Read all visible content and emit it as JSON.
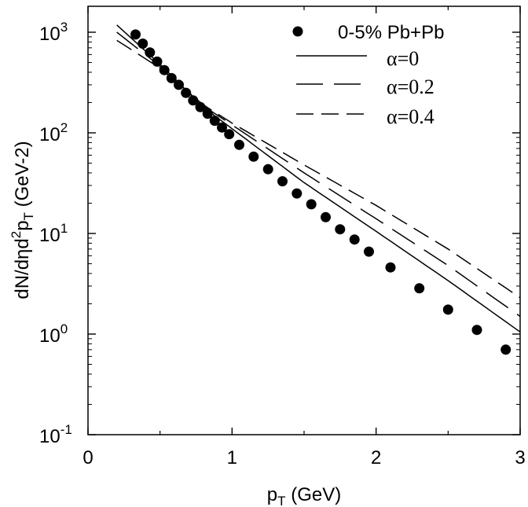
{
  "chart_data": {
    "type": "scatter",
    "title": "",
    "xlabel": {
      "base": "p",
      "sub": "T",
      "unit": " (GeV)"
    },
    "ylabel": {
      "prefix": "dN/dηd",
      "sup": "2",
      "p": "p",
      "sub": "T",
      "unit": " (GeV-2)"
    },
    "xlim": [
      0,
      3
    ],
    "ylim": [
      0.1,
      2000
    ],
    "yscale": "log",
    "x_ticks": [
      "0",
      "1",
      "2",
      "3"
    ],
    "y_ticks": [
      {
        "base": "10",
        "exp": "-1"
      },
      {
        "base": "10",
        "exp": "0"
      },
      {
        "base": "10",
        "exp": "1"
      },
      {
        "base": "10",
        "exp": "2"
      },
      {
        "base": "10",
        "exp": "3"
      }
    ],
    "legend_position": "top-right",
    "series": [
      {
        "name": "0-5% Pb+Pb",
        "kind": "points",
        "x": [
          0.33,
          0.38,
          0.43,
          0.48,
          0.53,
          0.58,
          0.63,
          0.68,
          0.73,
          0.78,
          0.83,
          0.88,
          0.93,
          0.98,
          1.05,
          1.15,
          1.25,
          1.35,
          1.45,
          1.55,
          1.65,
          1.75,
          1.85,
          1.95,
          2.1,
          2.3,
          2.5,
          2.7,
          2.9
        ],
        "y": [
          950,
          770,
          630,
          510,
          420,
          350,
          300,
          250,
          210,
          180,
          155,
          132,
          113,
          97,
          76,
          58,
          43.5,
          33,
          25,
          19.5,
          14.5,
          11,
          8.7,
          6.6,
          4.6,
          2.85,
          1.75,
          1.1,
          0.7
        ]
      },
      {
        "name": "α=0",
        "kind": "line",
        "dash": "solid",
        "x": [
          0.2,
          0.5,
          0.8,
          1.0,
          1.5,
          2.0,
          2.5,
          3.0
        ],
        "y": [
          1180,
          480,
          180,
          110,
          32,
          10.5,
          3.4,
          1.05
        ]
      },
      {
        "name": "α=0.2",
        "kind": "line",
        "dash": "medium",
        "x": [
          0.2,
          0.5,
          0.8,
          1.0,
          1.5,
          2.0,
          2.5,
          3.0
        ],
        "y": [
          1000,
          460,
          185,
          120,
          40,
          14,
          4.8,
          1.5
        ]
      },
      {
        "name": "α=0.4",
        "kind": "line",
        "dash": "long",
        "x": [
          0.2,
          0.5,
          0.8,
          1.0,
          1.5,
          2.0,
          2.5,
          3.0
        ],
        "y": [
          830,
          440,
          190,
          125,
          48,
          19,
          7,
          2.3
        ]
      }
    ]
  }
}
